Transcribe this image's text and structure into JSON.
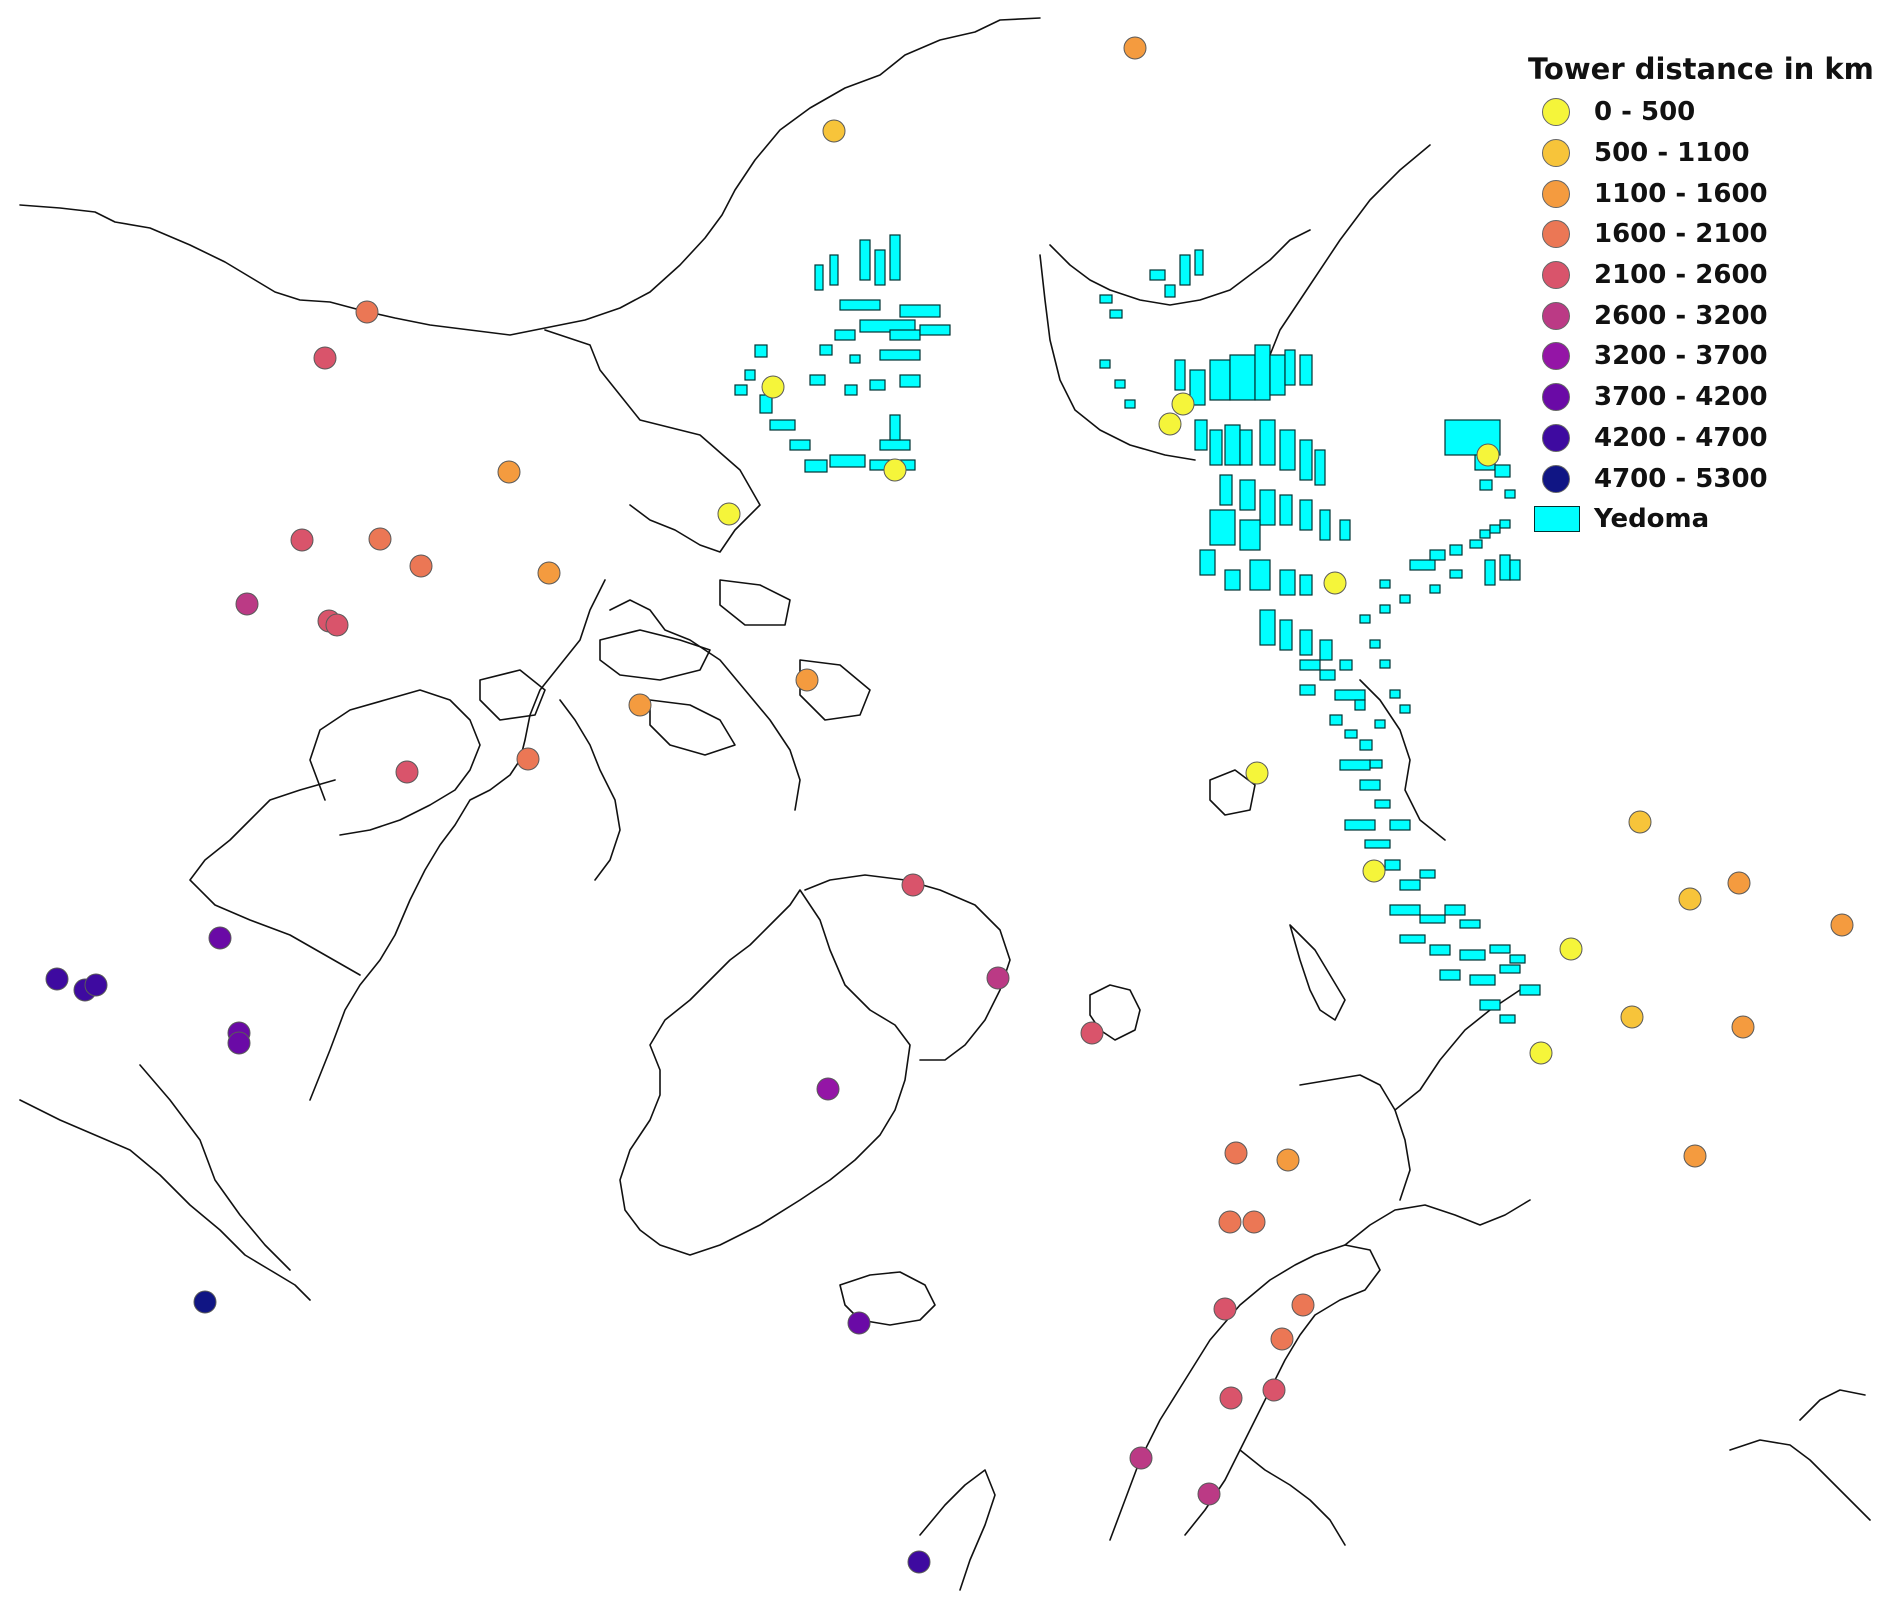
{
  "legend": {
    "title": "Tower distance in km",
    "classes": [
      {
        "label": "0 - 500",
        "color": "#f5f53a"
      },
      {
        "label": "500 - 1100",
        "color": "#f7c43a"
      },
      {
        "label": "1100 - 1600",
        "color": "#f49b3f"
      },
      {
        "label": "1600 - 2100",
        "color": "#eb7755"
      },
      {
        "label": "2100 - 2600",
        "color": "#d9546b"
      },
      {
        "label": "2600 - 3200",
        "color": "#bb3a85"
      },
      {
        "label": "3200 - 3700",
        "color": "#9415a6"
      },
      {
        "label": "3700 - 4200",
        "color": "#6a0aa6"
      },
      {
        "label": "4200 - 4700",
        "color": "#3e0aa0"
      },
      {
        "label": "4700 - 5300",
        "color": "#101584"
      }
    ],
    "area_layer": {
      "label": "Yedoma",
      "color": "#00ffff"
    }
  }
}
